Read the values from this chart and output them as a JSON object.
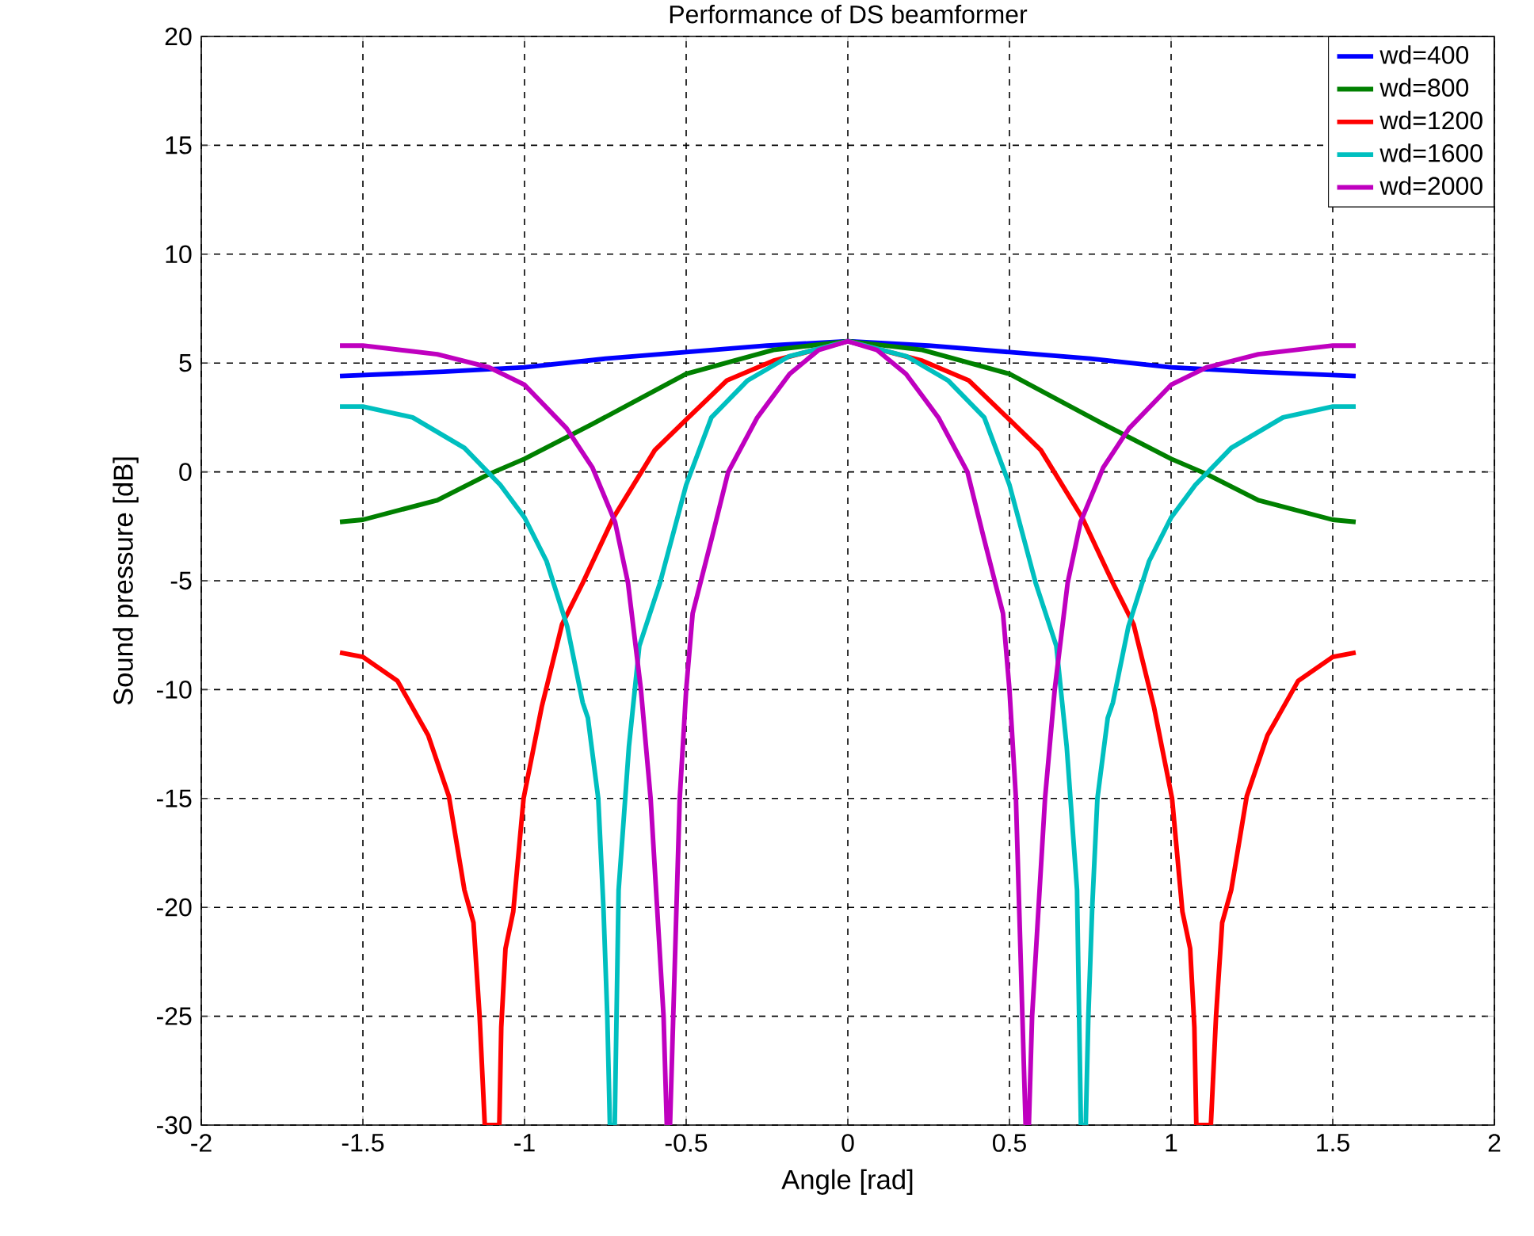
{
  "chart_data": {
    "type": "line",
    "title": "Performance of DS beamformer",
    "xlabel": "Angle [rad]",
    "ylabel": "Sound pressure [dB]",
    "xlim": [
      -2,
      2
    ],
    "ylim": [
      -30,
      20
    ],
    "xticks": [
      -2,
      -1.5,
      -1,
      -0.5,
      0,
      0.5,
      1,
      1.5,
      2
    ],
    "yticks": [
      -30,
      -25,
      -20,
      -15,
      -10,
      -5,
      0,
      5,
      10,
      15,
      20
    ],
    "grid": true,
    "legend": "top right",
    "marker": "none",
    "line_style": "solid",
    "series": [
      {
        "name": "wd=400",
        "color": "#0000ff",
        "x": [
          -1.571,
          -1.25,
          -1,
          -0.75,
          -0.5,
          -0.25,
          0,
          0.25,
          0.5,
          0.75,
          1,
          1.25,
          1.571
        ],
        "values": [
          4.4,
          4.6,
          4.8,
          5.2,
          5.5,
          5.8,
          6.0,
          5.8,
          5.5,
          5.2,
          4.8,
          4.6,
          4.4
        ]
      },
      {
        "name": "wd=800",
        "color": "#008000",
        "x": [
          -1.571,
          -1.5,
          -1.27,
          -1.11,
          -1,
          -0.79,
          -0.5,
          -0.23,
          0,
          0.23,
          0.5,
          0.79,
          1,
          1.11,
          1.27,
          1.5,
          1.571
        ],
        "values": [
          -2.3,
          -2.2,
          -1.3,
          -0.1,
          0.6,
          2.2,
          4.5,
          5.6,
          6.0,
          5.6,
          4.5,
          2.2,
          0.6,
          -0.1,
          -1.3,
          -2.2,
          -2.3
        ]
      },
      {
        "name": "wd=1200",
        "color": "#ff0000",
        "x": [
          -1.571,
          -1.5,
          -1.393,
          -1.298,
          -1.234,
          -1.186,
          -1.158,
          -1.139,
          -1.123,
          -1.078,
          -1.072,
          -1.059,
          -1.035,
          -1.003,
          -0.947,
          -0.884,
          -0.82,
          -0.725,
          -0.597,
          -0.5,
          -0.374,
          -0.231,
          0,
          0.231,
          0.374,
          0.5,
          0.597,
          0.725,
          0.82,
          0.884,
          0.947,
          1.003,
          1.035,
          1.059,
          1.072,
          1.078,
          1.123,
          1.139,
          1.158,
          1.186,
          1.234,
          1.298,
          1.393,
          1.5,
          1.571
        ],
        "values": [
          -8.3,
          -8.5,
          -9.6,
          -12.1,
          -14.9,
          -19.2,
          -20.7,
          -25,
          -30,
          -30,
          -25.5,
          -21.9,
          -20.2,
          -15,
          -10.8,
          -7,
          -5.1,
          -2.1,
          1,
          2.4,
          4.2,
          5.1,
          6.0,
          5.1,
          4.2,
          2.4,
          1,
          -2.1,
          -5.1,
          -7,
          -10.8,
          -15,
          -20.2,
          -21.9,
          -25.5,
          -30,
          -30,
          -25,
          -20.7,
          -19.2,
          -14.9,
          -12.1,
          -9.6,
          -8.5,
          -8.3
        ]
      },
      {
        "name": "wd=1600",
        "color": "#00bfbf",
        "x": [
          -1.571,
          -1.5,
          -1.346,
          -1.186,
          -1.075,
          -1,
          -0.932,
          -0.868,
          -0.82,
          -0.804,
          -0.772,
          -0.756,
          -0.744,
          -0.736,
          -0.721,
          -0.709,
          -0.677,
          -0.645,
          -0.581,
          -0.5,
          -0.422,
          -0.31,
          -0.183,
          0,
          0.183,
          0.31,
          0.422,
          0.5,
          0.581,
          0.645,
          0.677,
          0.709,
          0.721,
          0.736,
          0.744,
          0.756,
          0.772,
          0.804,
          0.82,
          0.868,
          0.932,
          1,
          1.075,
          1.186,
          1.346,
          1.5,
          1.571
        ],
        "values": [
          3.0,
          3.0,
          2.5,
          1.1,
          -0.6,
          -2.1,
          -4.1,
          -7.1,
          -10.6,
          -11.3,
          -15,
          -20,
          -25,
          -30,
          -30,
          -19.2,
          -12.6,
          -8,
          -5.1,
          -0.6,
          2.5,
          4.2,
          5.3,
          6.0,
          5.3,
          4.2,
          2.5,
          -0.6,
          -5.1,
          -8,
          -12.6,
          -19.2,
          -30,
          -30,
          -25,
          -20,
          -15,
          -11.3,
          -10.6,
          -7.1,
          -4.1,
          -2.1,
          -0.6,
          1.1,
          2.5,
          3.0,
          3.0
        ]
      },
      {
        "name": "wd=2000",
        "color": "#bf00bf",
        "x": [
          -1.571,
          -1.5,
          -1.27,
          -1.11,
          -1,
          -0.87,
          -0.79,
          -0.72,
          -0.68,
          -0.64,
          -0.61,
          -0.59,
          -0.57,
          -0.56,
          -0.55,
          -0.53,
          -0.52,
          -0.5,
          -0.48,
          -0.42,
          -0.37,
          -0.28,
          -0.18,
          -0.09,
          0,
          0.09,
          0.18,
          0.28,
          0.37,
          0.42,
          0.48,
          0.5,
          0.52,
          0.53,
          0.55,
          0.56,
          0.57,
          0.59,
          0.61,
          0.64,
          0.68,
          0.72,
          0.79,
          0.87,
          1,
          1.11,
          1.27,
          1.5,
          1.571
        ],
        "values": [
          5.8,
          5.8,
          5.4,
          4.8,
          4.0,
          2.0,
          0.2,
          -2.3,
          -5.1,
          -10,
          -15,
          -20,
          -25,
          -30,
          -30,
          -20,
          -15,
          -10,
          -6.5,
          -3.0,
          0,
          2.5,
          4.5,
          5.6,
          6.0,
          5.6,
          4.5,
          2.5,
          0,
          -3.0,
          -6.5,
          -10,
          -15,
          -20,
          -30,
          -30,
          -25,
          -20,
          -15,
          -10,
          -5.1,
          -2.3,
          0.2,
          2.0,
          4.0,
          4.8,
          5.4,
          5.8,
          5.8
        ]
      }
    ]
  }
}
